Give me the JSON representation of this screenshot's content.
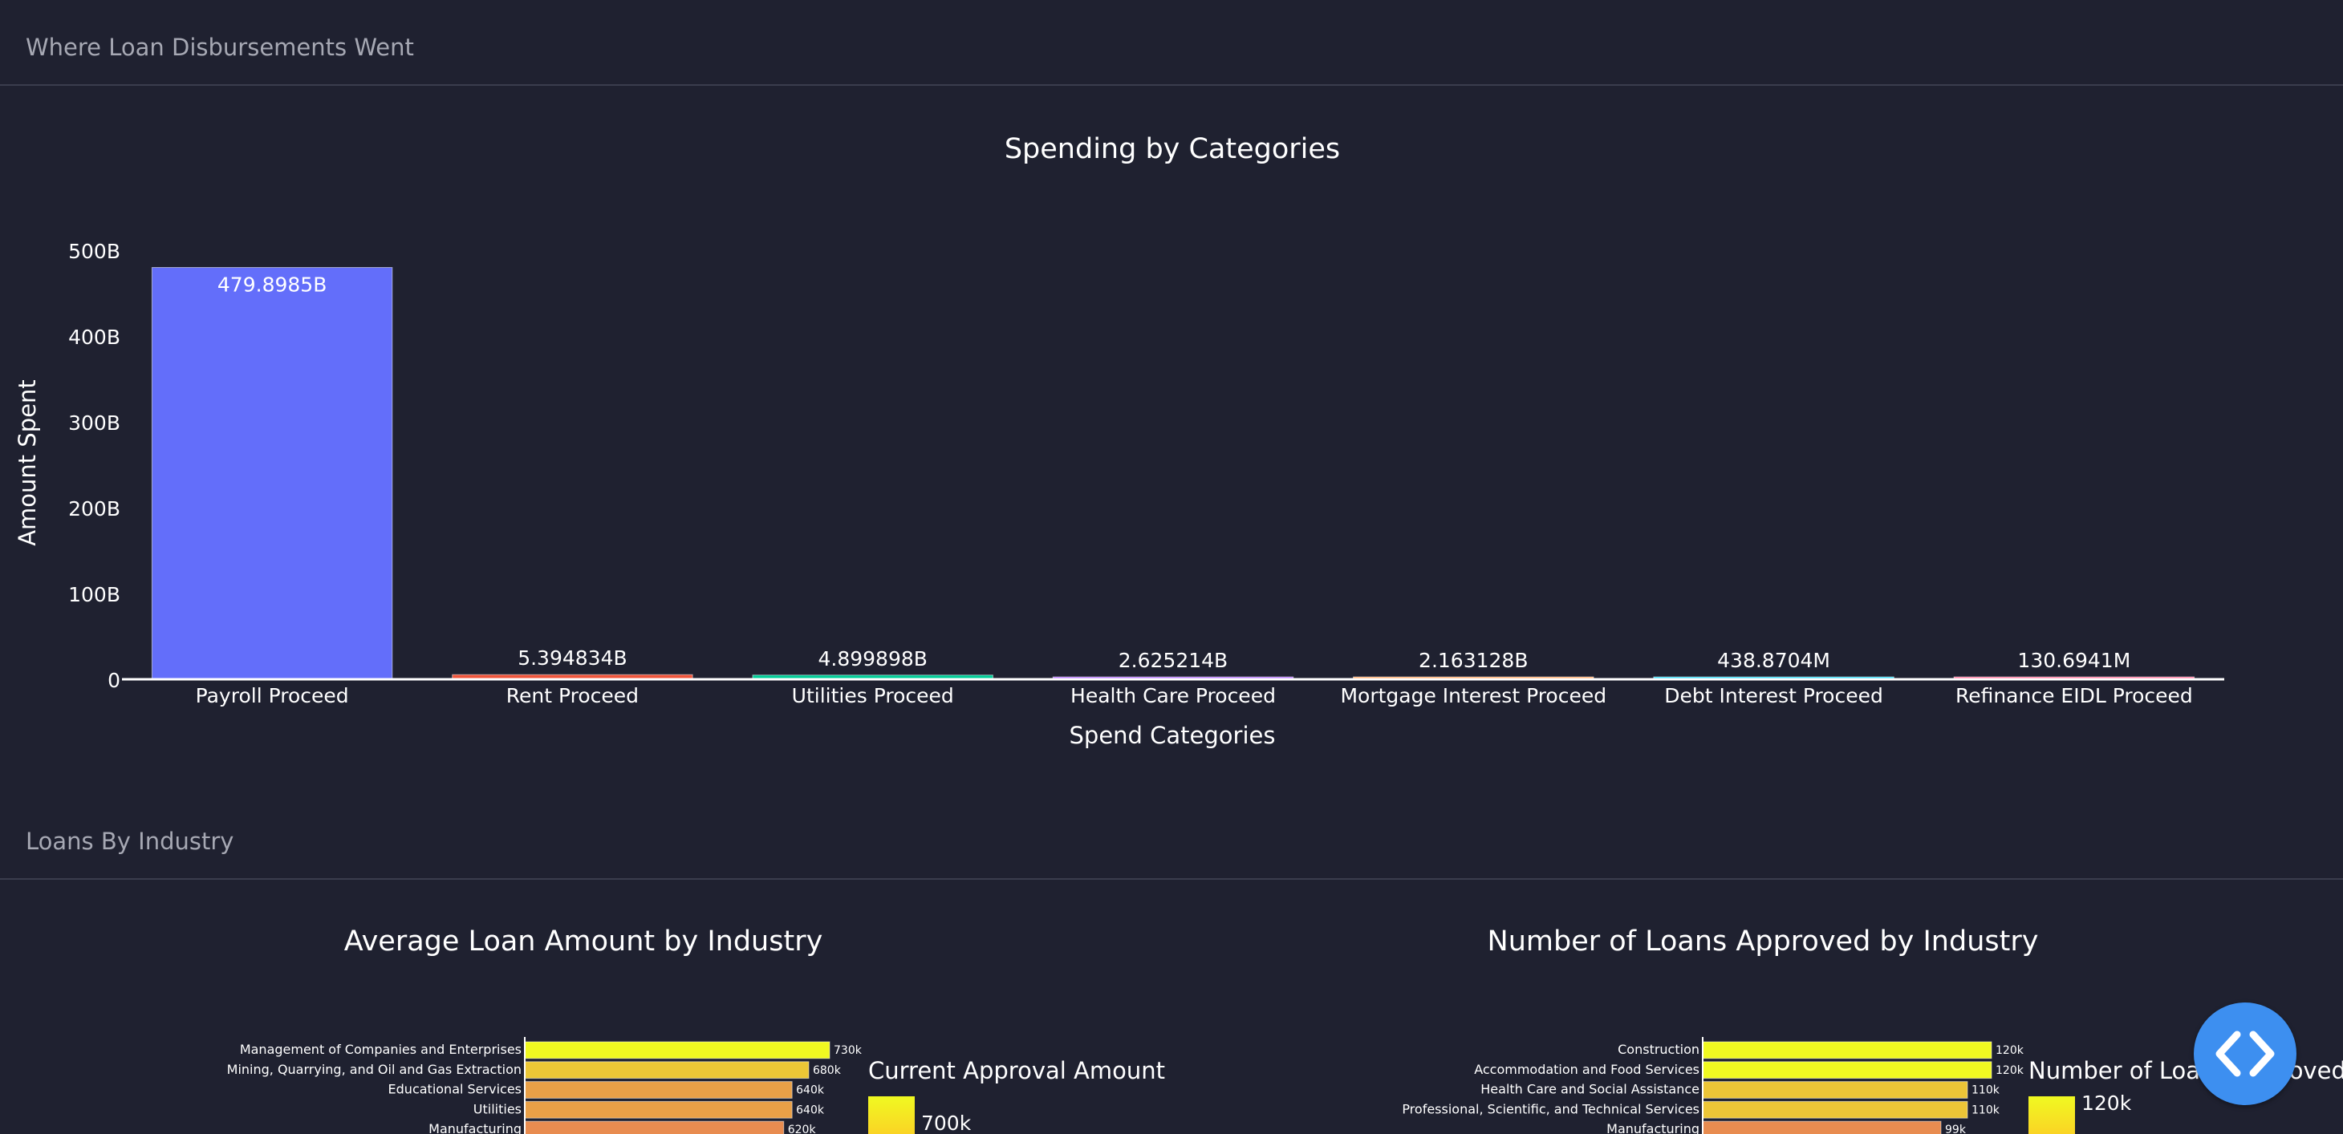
{
  "sections": {
    "disbursements": {
      "title": "Where Loan Disbursements Went"
    },
    "industry": {
      "title": "Loans By Industry"
    }
  },
  "colors": {
    "background": "#1f2130",
    "fab": "#3d8ff0"
  },
  "fab_icon": "code-icon",
  "chart_data": [
    {
      "type": "bar",
      "title": "Spending by Categories",
      "xlabel": "Spend Categories",
      "ylabel": "Amount Spent",
      "categories": [
        "Payroll Proceed",
        "Rent Proceed",
        "Utilities Proceed",
        "Health Care Proceed",
        "Mortgage Interest Proceed",
        "Debt Interest Proceed",
        "Refinance EIDL Proceed"
      ],
      "values": [
        479898500000,
        5394834000,
        4899898000,
        2625214000,
        2163128000,
        438870400,
        130694100
      ],
      "data_labels": [
        "479.8985B",
        "5.394834B",
        "4.899898B",
        "2.625214B",
        "2.163128B",
        "438.8704M",
        "130.6941M"
      ],
      "colors": [
        "#636efa",
        "#ef553b",
        "#00cc96",
        "#ab63fa",
        "#ffa15a",
        "#19d3f3",
        "#ff6692"
      ],
      "ylim": [
        0,
        500000000000
      ],
      "yticks": [
        0,
        100000000000,
        200000000000,
        300000000000,
        400000000000,
        500000000000
      ],
      "ytick_labels": [
        "0",
        "100B",
        "200B",
        "300B",
        "400B",
        "500B"
      ]
    },
    {
      "type": "bar",
      "orientation": "horizontal",
      "title": "Average Loan Amount by Industry",
      "categories": [
        "Management of Companies and Enterprises",
        "Mining, Quarrying, and Oil and Gas Extraction",
        "Educational Services",
        "Utilities",
        "Manufacturing"
      ],
      "values": [
        730000,
        680000,
        640000,
        640000,
        620000
      ],
      "data_labels": [
        "730k",
        "680k",
        "640k",
        "640k",
        "620k"
      ],
      "colorbar_title": "Current Approval Amount",
      "colorbar_tick": "700k",
      "xlim": [
        0,
        730000
      ]
    },
    {
      "type": "bar",
      "orientation": "horizontal",
      "title": "Number of Loans Approved by Industry",
      "categories": [
        "Construction",
        "Accommodation and Food Services",
        "Health Care and Social Assistance",
        "Professional, Scientific, and Technical Services",
        "Manufacturing"
      ],
      "values": [
        120000,
        120000,
        110000,
        110000,
        99000
      ],
      "data_labels": [
        "120k",
        "120k",
        "110k",
        "110k",
        "99k"
      ],
      "colorbar_title": "Number of Loans Approved",
      "colorbar_tick": "120k",
      "xlim": [
        0,
        120000
      ]
    }
  ]
}
